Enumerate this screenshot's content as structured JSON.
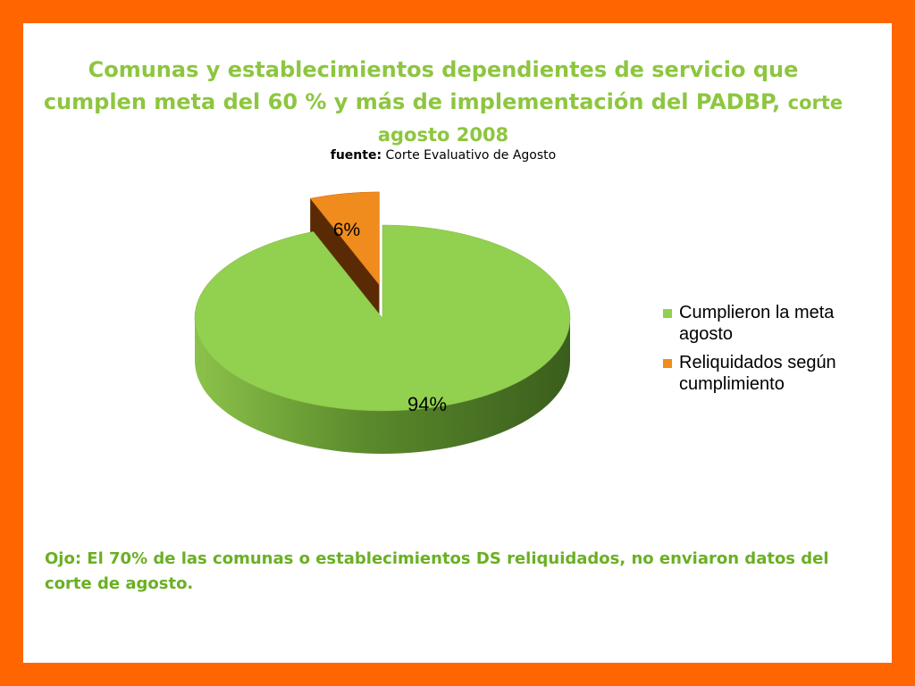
{
  "title": {
    "line1": "Comunas y establecimientos dependientes de servicio que",
    "line2": "cumplen meta del 60 % y más de implementación del PADBP,",
    "line2_small": "corte",
    "line3": "agosto 2008"
  },
  "source": {
    "label": "fuente:",
    "text": "Corte Evaluativo de Agosto"
  },
  "chart_data": {
    "type": "pie",
    "title": "",
    "slices": [
      {
        "label": "Cumplieron la meta agosto",
        "value": 94,
        "display": "94%",
        "color": "#92d050"
      },
      {
        "label": "Reliquidados según cumplimiento",
        "value": 6,
        "display": "6%",
        "color": "#f08c1e"
      }
    ],
    "legend_position": "right",
    "three_d": true,
    "exploded_slice": 1
  },
  "note": "Ojo: El 70% de las comunas o establecimientos DS reliquidados, no enviaron datos del corte de agosto."
}
